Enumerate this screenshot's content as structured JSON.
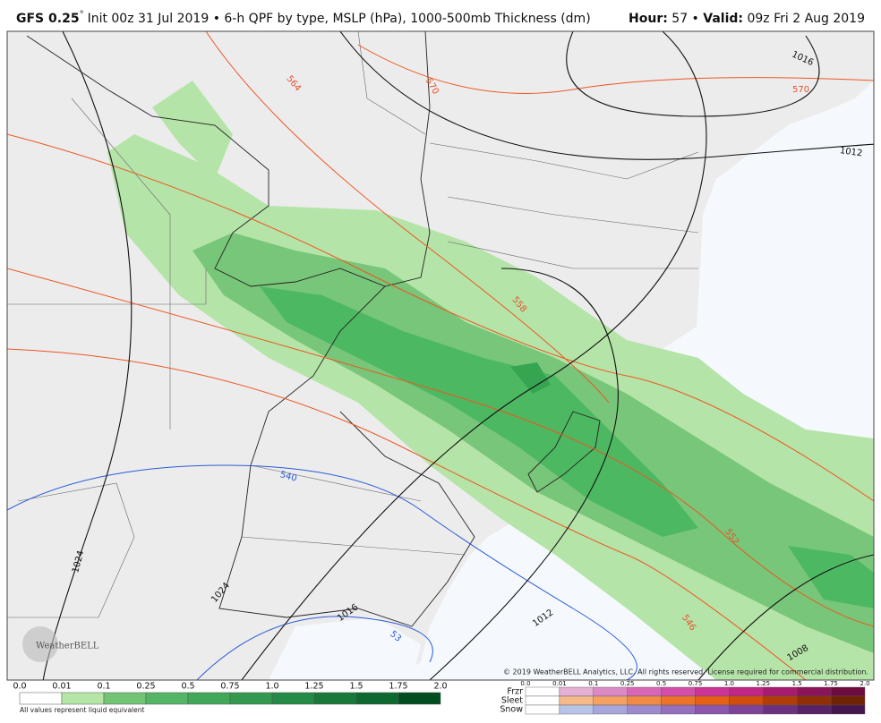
{
  "header": {
    "model": "GFS 0.25",
    "degree": "°",
    "init": "Init 00z 31 Jul 2019 • 6-h QPF by type, MSLP (hPa), 1000-500mb Thickness (dm)",
    "hour_label": "Hour:",
    "hour": "57 •",
    "valid_label": "Valid:",
    "valid": "09z Fri 2 Aug 2019"
  },
  "contour_labels": [
    "564",
    "570",
    "570",
    "1016",
    "1012",
    "558",
    "552",
    "546",
    "540",
    "53",
    "1024",
    "1024",
    "1016",
    "1012",
    "1008"
  ],
  "copyright": "© 2019 WeatherBELL Analytics, LLC. All rights reserved. License required for commercial distribution.",
  "logo": "WeatherBELL",
  "legend": {
    "ticks": [
      "0.0",
      "0.01",
      "0.1",
      "0.25",
      "0.5",
      "0.75",
      "1.0",
      "1.25",
      "1.5",
      "1.75",
      "2.0"
    ],
    "note": "All values represent liquid equivalent"
  },
  "ptype_legend": {
    "rows": [
      "Frzr",
      "Sleet",
      "Snow"
    ],
    "ticks": [
      "0.0",
      "0.01",
      "0.1",
      "0.25",
      "0.5",
      "0.75",
      "1.0",
      "1.25",
      "1.5",
      "1.75",
      "2.0"
    ]
  }
}
